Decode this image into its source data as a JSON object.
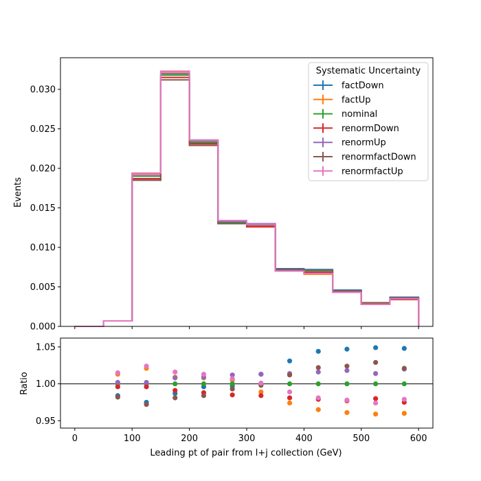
{
  "chart_data": [
    {
      "type": "step",
      "panel": "main",
      "title": "",
      "xlabel": "",
      "ylabel": "Events",
      "xlim": [
        -25,
        625
      ],
      "ylim": [
        0,
        0.034
      ],
      "yticks": [
        "0.000",
        "0.005",
        "0.010",
        "0.015",
        "0.020",
        "0.025",
        "0.030"
      ],
      "ytick_values": [
        0,
        0.005,
        0.01,
        0.015,
        0.02,
        0.025,
        0.03
      ],
      "xticks": [
        0,
        100,
        200,
        300,
        400,
        500,
        600
      ],
      "bin_edges": [
        0,
        50,
        100,
        150,
        200,
        250,
        300,
        350,
        400,
        450,
        500,
        550,
        600
      ],
      "legend": {
        "title": "Systematic Uncertainty",
        "position": "top-right"
      },
      "series": [
        {
          "name": "factDown",
          "color": "#1f77b4",
          "values": [
            0.0,
            0.0007,
            0.0185,
            0.0318,
            0.0232,
            0.0131,
            0.0129,
            0.0073,
            0.0072,
            0.0046,
            0.003,
            0.0037
          ]
        },
        {
          "name": "factUp",
          "color": "#ff7f0e",
          "values": [
            0.0,
            0.0007,
            0.0193,
            0.0322,
            0.0235,
            0.0133,
            0.0126,
            0.007,
            0.0066,
            0.0043,
            0.0028,
            0.0034
          ]
        },
        {
          "name": "nominal",
          "color": "#2ca02c",
          "values": [
            0.0,
            0.0007,
            0.019,
            0.0318,
            0.0233,
            0.0132,
            0.0128,
            0.0071,
            0.0069,
            0.0044,
            0.0029,
            0.0035
          ]
        },
        {
          "name": "renormDown",
          "color": "#d62728",
          "values": [
            0.0,
            0.0007,
            0.0187,
            0.0315,
            0.0231,
            0.013,
            0.0126,
            0.007,
            0.0068,
            0.0043,
            0.0028,
            0.0034
          ]
        },
        {
          "name": "renormUp",
          "color": "#9467bd",
          "values": [
            0.0,
            0.0007,
            0.0191,
            0.032,
            0.0235,
            0.0133,
            0.013,
            0.0072,
            0.0071,
            0.0045,
            0.003,
            0.0036
          ]
        },
        {
          "name": "renormfactDown",
          "color": "#8c564b",
          "values": [
            0.0,
            0.0007,
            0.0185,
            0.0312,
            0.0229,
            0.013,
            0.0128,
            0.0072,
            0.0071,
            0.0045,
            0.003,
            0.0036
          ]
        },
        {
          "name": "renormfactUp",
          "color": "#e377c2",
          "values": [
            0.0,
            0.0007,
            0.0194,
            0.0323,
            0.0236,
            0.0134,
            0.0129,
            0.007,
            0.0067,
            0.0043,
            0.0028,
            0.0035
          ]
        }
      ]
    },
    {
      "type": "scatter",
      "panel": "ratio",
      "title": "",
      "xlabel": "Leading pt of pair from l+j collection (GeV)",
      "ylabel": "Ratio",
      "xlim": [
        -25,
        625
      ],
      "ylim": [
        0.94,
        1.062
      ],
      "yticks": [
        "0.95",
        "1.00",
        "1.05"
      ],
      "ytick_values": [
        0.95,
        1.0,
        1.05
      ],
      "xticks": [
        "0",
        "100",
        "200",
        "300",
        "400",
        "500",
        "600"
      ],
      "xtick_values": [
        0,
        100,
        200,
        300,
        400,
        500,
        600
      ],
      "reference_line": 1.0,
      "x": [
        75,
        125,
        175,
        225,
        275,
        325,
        375,
        425,
        475,
        525,
        575
      ],
      "series": [
        {
          "name": "factDown",
          "color": "#1f77b4",
          "values": [
            0.984,
            0.975,
            0.987,
            0.996,
            0.997,
            1.013,
            1.031,
            1.044,
            1.047,
            1.049,
            1.048
          ]
        },
        {
          "name": "factUp",
          "color": "#ff7f0e",
          "values": [
            1.013,
            1.021,
            1.009,
            1.008,
            1.005,
            0.989,
            0.974,
            0.965,
            0.961,
            0.959,
            0.96
          ]
        },
        {
          "name": "nominal",
          "color": "#2ca02c",
          "values": [
            1.0,
            1.0,
            1.0,
            1.0,
            1.0,
            1.0,
            1.0,
            1.0,
            1.0,
            1.0,
            1.0
          ]
        },
        {
          "name": "renormDown",
          "color": "#d62728",
          "values": [
            0.996,
            0.996,
            0.991,
            0.988,
            0.985,
            0.984,
            0.981,
            0.979,
            0.977,
            0.98,
            0.975
          ]
        },
        {
          "name": "renormUp",
          "color": "#9467bd",
          "values": [
            1.002,
            1.002,
            1.008,
            1.009,
            1.012,
            1.013,
            1.014,
            1.016,
            1.018,
            1.014,
            1.02
          ]
        },
        {
          "name": "renormfactDown",
          "color": "#8c564b",
          "values": [
            0.982,
            0.972,
            0.981,
            0.984,
            0.993,
            0.998,
            1.012,
            1.022,
            1.024,
            1.029,
            1.021
          ]
        },
        {
          "name": "renormfactUp",
          "color": "#e377c2",
          "values": [
            1.015,
            1.024,
            1.016,
            1.013,
            1.007,
            1.001,
            0.989,
            0.981,
            0.978,
            0.974,
            0.979
          ]
        }
      ]
    }
  ]
}
